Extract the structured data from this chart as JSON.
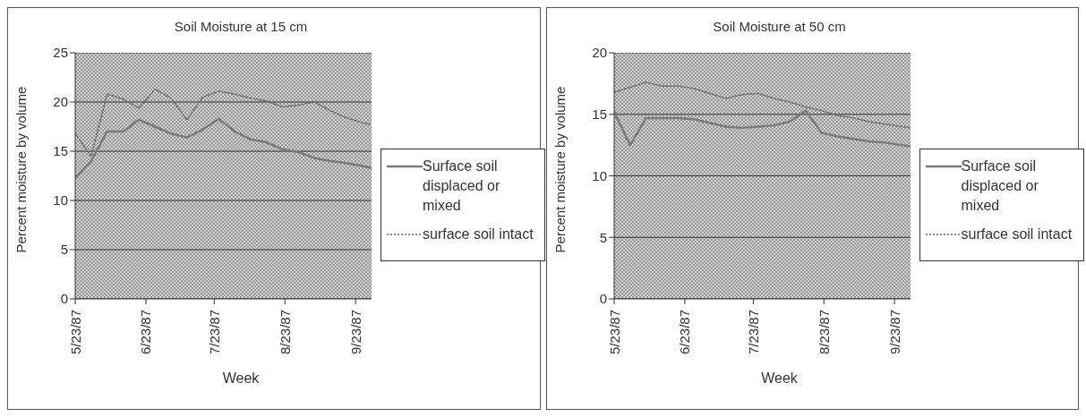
{
  "chart_data": [
    {
      "type": "line",
      "title": "Soil Moisture at 15 cm",
      "xlabel": "Week",
      "ylabel": "Percent moisture by volume",
      "x": [
        "1987-05-23",
        "1987-05-30",
        "1987-06-06",
        "1987-06-13",
        "1987-06-20",
        "1987-06-27",
        "1987-07-04",
        "1987-07-11",
        "1987-07-18",
        "1987-07-25",
        "1987-08-01",
        "1987-08-08",
        "1987-08-15",
        "1987-08-22",
        "1987-08-29",
        "1987-09-05",
        "1987-09-12",
        "1987-09-19",
        "1987-09-26",
        "1987-09-30"
      ],
      "series": [
        {
          "name": "Surface soil displaced or mixed",
          "color": "#7a7a7a",
          "line_style": "solid",
          "values": [
            12.3,
            14.0,
            17.0,
            17.0,
            18.2,
            17.5,
            16.8,
            16.4,
            17.2,
            18.3,
            17.0,
            16.2,
            15.9,
            15.2,
            14.9,
            14.3,
            14.0,
            13.8,
            13.5,
            13.3
          ]
        },
        {
          "name": "surface soil intact",
          "color": "#6a6a6a",
          "line_style": "dotted",
          "values": [
            16.8,
            14.5,
            20.8,
            20.3,
            19.4,
            21.3,
            20.4,
            18.2,
            20.5,
            21.1,
            20.8,
            20.4,
            20.1,
            19.5,
            19.7,
            20.0,
            19.1,
            18.4,
            17.9,
            17.7
          ]
        }
      ],
      "xlim": [
        "1987-05-23",
        "1987-09-30"
      ],
      "xticks": [
        {
          "value": "1987-05-23",
          "label": "5/23/87"
        },
        {
          "value": "1987-06-23",
          "label": "6/23/87"
        },
        {
          "value": "1987-07-23",
          "label": "7/23/87"
        },
        {
          "value": "1987-08-23",
          "label": "8/23/87"
        },
        {
          "value": "1987-09-23",
          "label": "9/23/87"
        }
      ],
      "ylim": [
        0,
        25
      ],
      "yticks": [
        0,
        5,
        10,
        15,
        20,
        25
      ],
      "grid": "y",
      "legend": "right",
      "marker": "none"
    },
    {
      "type": "line",
      "title": "Soil Moisture at 50 cm",
      "xlabel": "Week",
      "ylabel": "Percent moisture by volume",
      "x": [
        "1987-05-23",
        "1987-05-30",
        "1987-06-06",
        "1987-06-13",
        "1987-06-20",
        "1987-06-27",
        "1987-07-04",
        "1987-07-11",
        "1987-07-18",
        "1987-07-25",
        "1987-08-01",
        "1987-08-08",
        "1987-08-15",
        "1987-08-22",
        "1987-08-29",
        "1987-09-05",
        "1987-09-12",
        "1987-09-19",
        "1987-09-26",
        "1987-09-30"
      ],
      "series": [
        {
          "name": "Surface soil displaced or mixed",
          "color": "#7a7a7a",
          "line_style": "solid",
          "values": [
            15.2,
            12.5,
            14.7,
            14.7,
            14.7,
            14.6,
            14.3,
            14.0,
            13.9,
            14.0,
            14.1,
            14.4,
            15.3,
            13.5,
            13.2,
            13.0,
            12.8,
            12.7,
            12.5,
            12.4
          ]
        },
        {
          "name": "surface soil intact",
          "color": "#6a6a6a",
          "line_style": "dotted",
          "values": [
            16.8,
            17.2,
            17.6,
            17.3,
            17.3,
            17.1,
            16.7,
            16.3,
            16.6,
            16.7,
            16.3,
            16.0,
            15.6,
            15.3,
            14.9,
            14.7,
            14.4,
            14.2,
            14.0,
            13.9
          ]
        }
      ],
      "xlim": [
        "1987-05-23",
        "1987-09-30"
      ],
      "xticks": [
        {
          "value": "1987-05-23",
          "label": "5/23/87"
        },
        {
          "value": "1987-06-23",
          "label": "6/23/87"
        },
        {
          "value": "1987-07-23",
          "label": "7/23/87"
        },
        {
          "value": "1987-08-23",
          "label": "8/23/87"
        },
        {
          "value": "1987-09-23",
          "label": "9/23/87"
        }
      ],
      "ylim": [
        0,
        20
      ],
      "yticks": [
        0,
        5,
        10,
        15,
        20
      ],
      "grid": "y",
      "legend": "right",
      "marker": "none"
    }
  ]
}
